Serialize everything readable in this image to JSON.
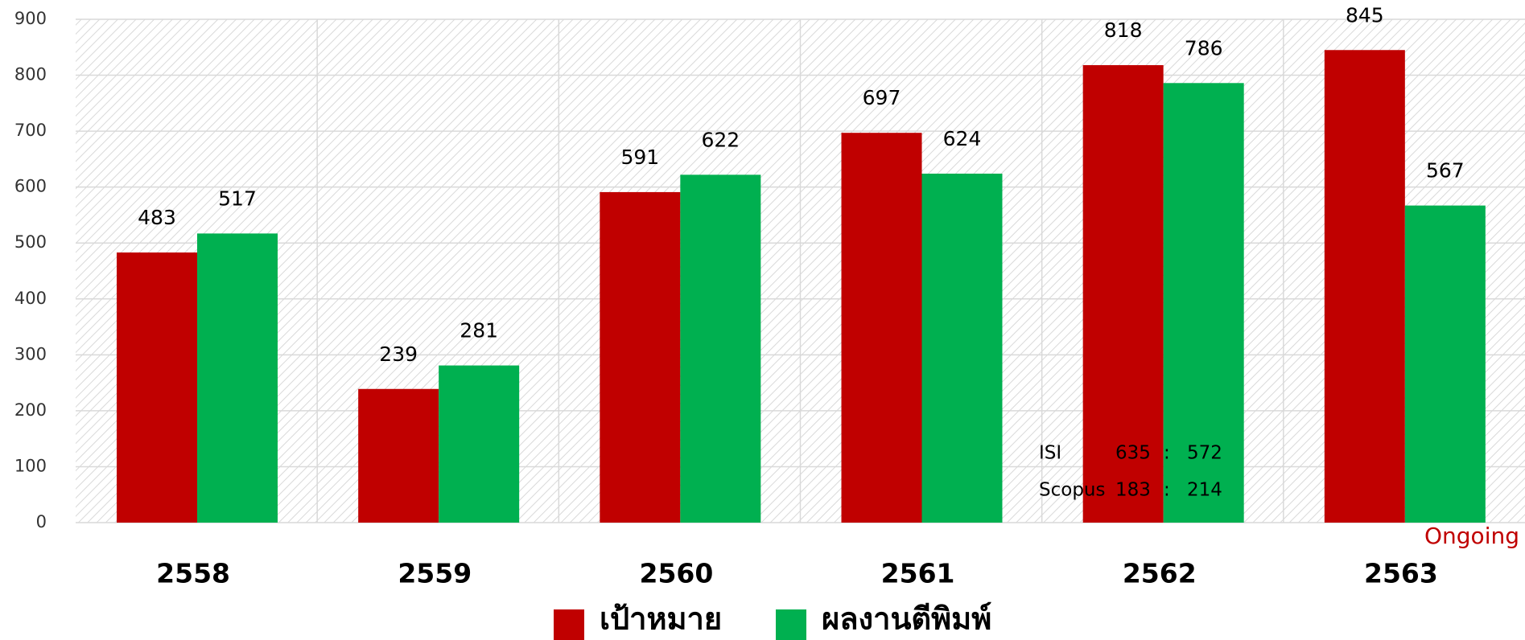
{
  "chart_data": {
    "type": "bar",
    "categories": [
      "2558",
      "2559",
      "2560",
      "2561",
      "2562",
      "2563"
    ],
    "series": [
      {
        "name": "เป้าหมาย",
        "color": "#c00000",
        "values": [
          483,
          239,
          591,
          697,
          818,
          845
        ]
      },
      {
        "name": "ผลงานตีพิมพ์",
        "color": "#00b050",
        "values": [
          517,
          281,
          622,
          624,
          786,
          567
        ]
      }
    ],
    "ylim": [
      0,
      900
    ],
    "yticks": [
      0,
      100,
      200,
      300,
      400,
      500,
      600,
      700,
      800,
      900
    ],
    "grid": true,
    "legend": "bottom",
    "annotations": [
      {
        "label": "ISI",
        "values": [
          635,
          572
        ],
        "separator": ":"
      },
      {
        "label": "Scopus",
        "values": [
          183,
          214
        ],
        "separator": ":"
      }
    ],
    "note": "Ongoing"
  }
}
